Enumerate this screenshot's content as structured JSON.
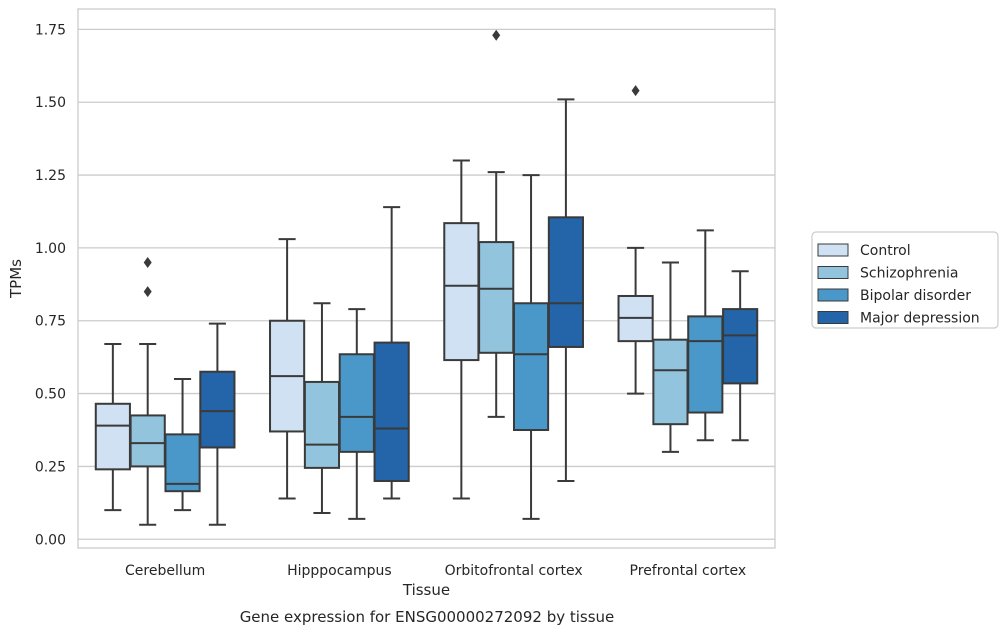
{
  "chart_data": {
    "type": "boxplot",
    "caption": "Gene expression for ENSG00000272092 by tissue",
    "xlabel": "Tissue",
    "ylabel": "TPMs",
    "ylim": [
      -0.03,
      1.82
    ],
    "yticks": [
      0.0,
      0.25,
      0.5,
      0.75,
      1.0,
      1.25,
      1.5,
      1.75
    ],
    "ytick_labels": [
      "0.00",
      "0.25",
      "0.50",
      "0.75",
      "1.00",
      "1.25",
      "1.50",
      "1.75"
    ],
    "grid": true,
    "legend_position": "right",
    "categories": [
      "Cerebellum",
      "Hipppocampus",
      "Orbitofrontal cortex",
      "Prefrontal cortex"
    ],
    "series": [
      {
        "name": "Control",
        "color": "#cfe1f2",
        "boxes": [
          {
            "whisker_low": 0.1,
            "q1": 0.24,
            "median": 0.39,
            "q3": 0.465,
            "whisker_high": 0.67,
            "outliers": []
          },
          {
            "whisker_low": 0.14,
            "q1": 0.37,
            "median": 0.56,
            "q3": 0.75,
            "whisker_high": 1.03,
            "outliers": []
          },
          {
            "whisker_low": 0.14,
            "q1": 0.615,
            "median": 0.87,
            "q3": 1.085,
            "whisker_high": 1.3,
            "outliers": []
          },
          {
            "whisker_low": 0.5,
            "q1": 0.68,
            "median": 0.76,
            "q3": 0.835,
            "whisker_high": 1.0,
            "outliers": [
              1.54
            ]
          }
        ]
      },
      {
        "name": "Schizophrenia",
        "color": "#93c4de",
        "boxes": [
          {
            "whisker_low": 0.05,
            "q1": 0.25,
            "median": 0.33,
            "q3": 0.425,
            "whisker_high": 0.67,
            "outliers": [
              0.85,
              0.95
            ]
          },
          {
            "whisker_low": 0.09,
            "q1": 0.245,
            "median": 0.325,
            "q3": 0.54,
            "whisker_high": 0.81,
            "outliers": []
          },
          {
            "whisker_low": 0.42,
            "q1": 0.64,
            "median": 0.86,
            "q3": 1.02,
            "whisker_high": 1.26,
            "outliers": [
              1.73
            ]
          },
          {
            "whisker_low": 0.3,
            "q1": 0.395,
            "median": 0.58,
            "q3": 0.685,
            "whisker_high": 0.95,
            "outliers": []
          }
        ]
      },
      {
        "name": "Bipolar disorder",
        "color": "#4a98c9",
        "boxes": [
          {
            "whisker_low": 0.1,
            "q1": 0.165,
            "median": 0.19,
            "q3": 0.36,
            "whisker_high": 0.55,
            "outliers": []
          },
          {
            "whisker_low": 0.07,
            "q1": 0.3,
            "median": 0.42,
            "q3": 0.635,
            "whisker_high": 0.79,
            "outliers": []
          },
          {
            "whisker_low": 0.07,
            "q1": 0.375,
            "median": 0.635,
            "q3": 0.81,
            "whisker_high": 1.25,
            "outliers": []
          },
          {
            "whisker_low": 0.34,
            "q1": 0.435,
            "median": 0.68,
            "q3": 0.765,
            "whisker_high": 1.06,
            "outliers": []
          }
        ]
      },
      {
        "name": "Major depression",
        "color": "#2464a8",
        "boxes": [
          {
            "whisker_low": 0.05,
            "q1": 0.315,
            "median": 0.44,
            "q3": 0.575,
            "whisker_high": 0.74,
            "outliers": []
          },
          {
            "whisker_low": 0.14,
            "q1": 0.2,
            "median": 0.38,
            "q3": 0.675,
            "whisker_high": 1.14,
            "outliers": []
          },
          {
            "whisker_low": 0.2,
            "q1": 0.66,
            "median": 0.81,
            "q3": 1.105,
            "whisker_high": 1.51,
            "outliers": []
          },
          {
            "whisker_low": 0.34,
            "q1": 0.535,
            "median": 0.7,
            "q3": 0.79,
            "whisker_high": 0.92,
            "outliers": []
          }
        ]
      }
    ]
  }
}
